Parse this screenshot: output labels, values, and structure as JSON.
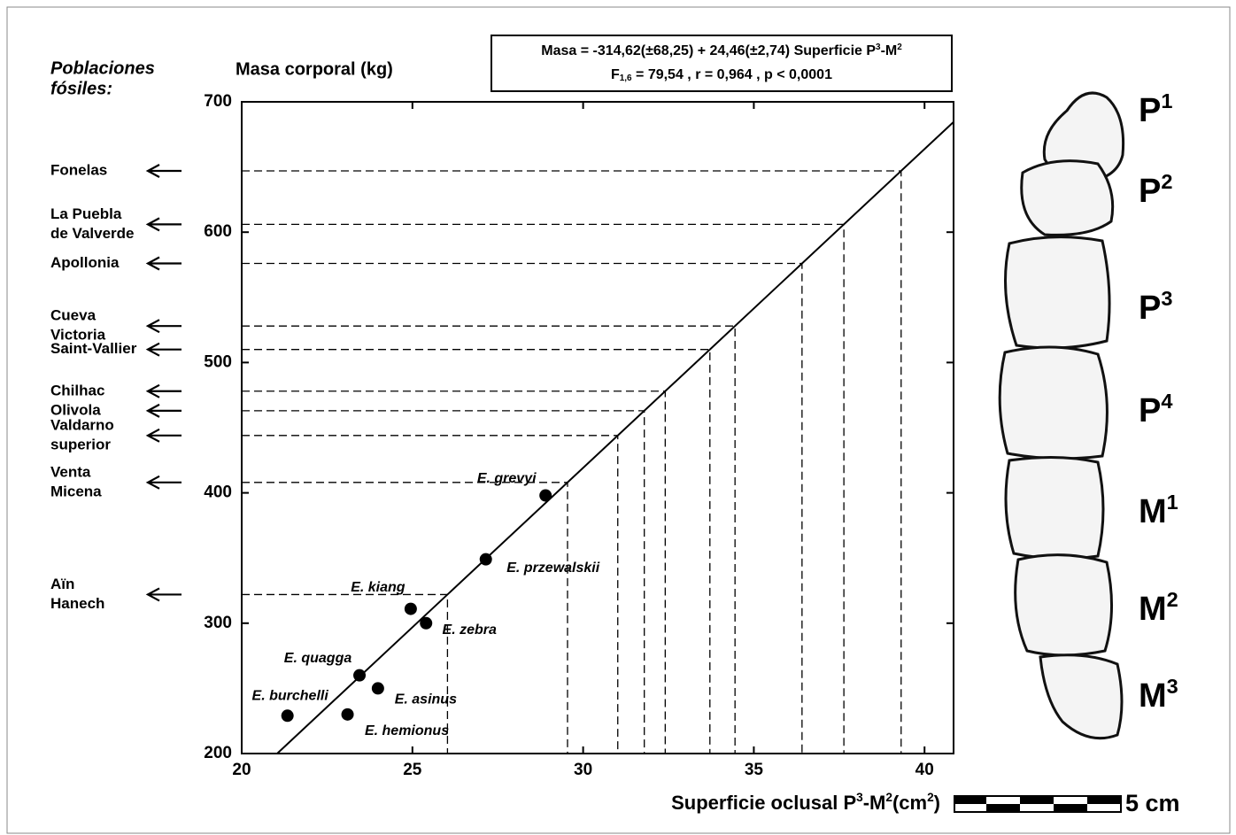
{
  "chart_data": {
    "type": "scatter",
    "y_axis_label": "Masa corporal (kg)",
    "x_axis_label": [
      {
        "t": "Superficie oclusal P"
      },
      {
        "sup": "3"
      },
      {
        "t": "-M"
      },
      {
        "sup": "2"
      },
      {
        "t": "(cm"
      },
      {
        "sup": "2"
      },
      {
        "t": ")"
      }
    ],
    "equation": [
      [
        {
          "t": "Masa = -314,62(±68,25) + 24,46(±2,74) Superficie P"
        },
        {
          "sup": "3"
        },
        {
          "t": "-M"
        },
        {
          "sup": "2"
        }
      ],
      [
        {
          "t": "F"
        },
        {
          "sub": "1,6"
        },
        {
          "t": " = 79,54 , r = 0,964 , p < 0,0001"
        }
      ]
    ],
    "fit": {
      "intercept": -314.62,
      "slope": 24.46
    },
    "xlim": [
      20,
      40.85
    ],
    "ylim": [
      200,
      700
    ],
    "xticks": [
      20,
      25,
      30,
      35,
      40
    ],
    "yticks": [
      200,
      300,
      400,
      500,
      600,
      700
    ],
    "color": "#000000",
    "points": {
      "labels": [
        "E. burchelli",
        "E. hemionus",
        "E. quagga",
        "E. asinus",
        "E. kiang",
        "E. zebra",
        "E. przewalskii",
        "E. grevyi"
      ],
      "x": [
        21.34,
        23.1,
        23.45,
        23.99,
        24.95,
        25.4,
        27.15,
        28.9
      ],
      "y": [
        229,
        230,
        260,
        250,
        311,
        300,
        349,
        398
      ]
    },
    "populations_title": [
      "Poblaciones",
      "fósiles:"
    ],
    "populations": [
      {
        "label": [
          "Fonelas"
        ],
        "value": 647
      },
      {
        "label": [
          "La Puebla",
          "de Valverde"
        ],
        "value": 606
      },
      {
        "label": [
          "Apollonia"
        ],
        "value": 576
      },
      {
        "label": [
          "Cueva",
          "Victoria"
        ],
        "value": 528
      },
      {
        "label": [
          "Saint-Vallier"
        ],
        "value": 510
      },
      {
        "label": [
          "Chilhac"
        ],
        "value": 478
      },
      {
        "label": [
          "Olivola"
        ],
        "value": 463
      },
      {
        "label": [
          "Valdarno",
          "superior"
        ],
        "value": 444
      },
      {
        "label": [
          "Venta",
          "Micena"
        ],
        "value": 408
      },
      {
        "label": [
          "Aïn",
          "Hanech"
        ],
        "value": 322
      }
    ],
    "teeth": [
      [
        {
          "t": "P"
        },
        {
          "sup": "1"
        }
      ],
      [
        {
          "t": "P"
        },
        {
          "sup": "2"
        }
      ],
      [
        {
          "t": "P"
        },
        {
          "sup": "3"
        }
      ],
      [
        {
          "t": "P"
        },
        {
          "sup": "4"
        }
      ],
      [
        {
          "t": "M"
        },
        {
          "sup": "1"
        }
      ],
      [
        {
          "t": "M"
        },
        {
          "sup": "2"
        }
      ],
      [
        {
          "t": "M"
        },
        {
          "sup": "3"
        }
      ]
    ],
    "scale_bar_label": "5 cm"
  }
}
